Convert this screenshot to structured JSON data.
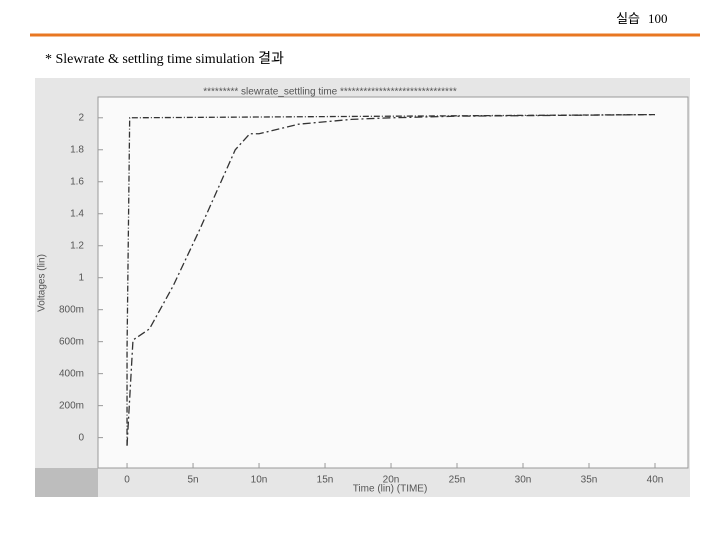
{
  "slide": {
    "label": "실습",
    "page": "100",
    "caption": "* Slewrate & settling time simulation 결과"
  },
  "chart_data": {
    "type": "line",
    "title": "********* slewrate_settling time ******************************",
    "xlabel": "Time (lin) (TIME)",
    "ylabel": "Voltages (lin)",
    "xlim": [
      -2.2e-09,
      4.25e-08
    ],
    "ylim": [
      -0.19,
      2.13
    ],
    "xticks": [
      0,
      {
        "value": 5e-09,
        "label": "5n"
      },
      {
        "value": 1e-08,
        "label": "10n"
      },
      {
        "value": 1.5e-08,
        "label": "15n"
      },
      {
        "value": 2e-08,
        "label": "20n"
      },
      {
        "value": 2.5e-08,
        "label": "25n"
      },
      {
        "value": 3e-08,
        "label": "30n"
      },
      {
        "value": 3.5e-08,
        "label": "35n"
      },
      {
        "value": 4e-08,
        "label": "40n"
      }
    ],
    "yticks": [
      0,
      {
        "value": 0.2,
        "label": "200m"
      },
      {
        "value": 0.4,
        "label": "400m"
      },
      {
        "value": 0.6,
        "label": "600m"
      },
      {
        "value": 0.8,
        "label": "800m"
      },
      1,
      1.2,
      1.4,
      1.6,
      1.8,
      2
    ],
    "series": [
      {
        "color": "#333333",
        "x": [
          0,
          0,
          2e-10,
          4e-08
        ],
        "values": [
          -0.05,
          0.55,
          2.0,
          2.02
        ]
      },
      {
        "color": "#333333",
        "x": [
          0,
          4.5e-10,
          1.7e-09,
          3.5e-09,
          5.5e-09,
          8.2e-09,
          9.3e-09,
          1e-08,
          1.3e-08,
          1.7e-08,
          2e-08,
          2.5e-08,
          4e-08
        ],
        "values": [
          -0.05,
          0.61,
          0.68,
          0.95,
          1.3,
          1.8,
          1.9,
          1.9,
          1.96,
          1.99,
          2.0,
          2.01,
          2.02
        ]
      }
    ]
  }
}
